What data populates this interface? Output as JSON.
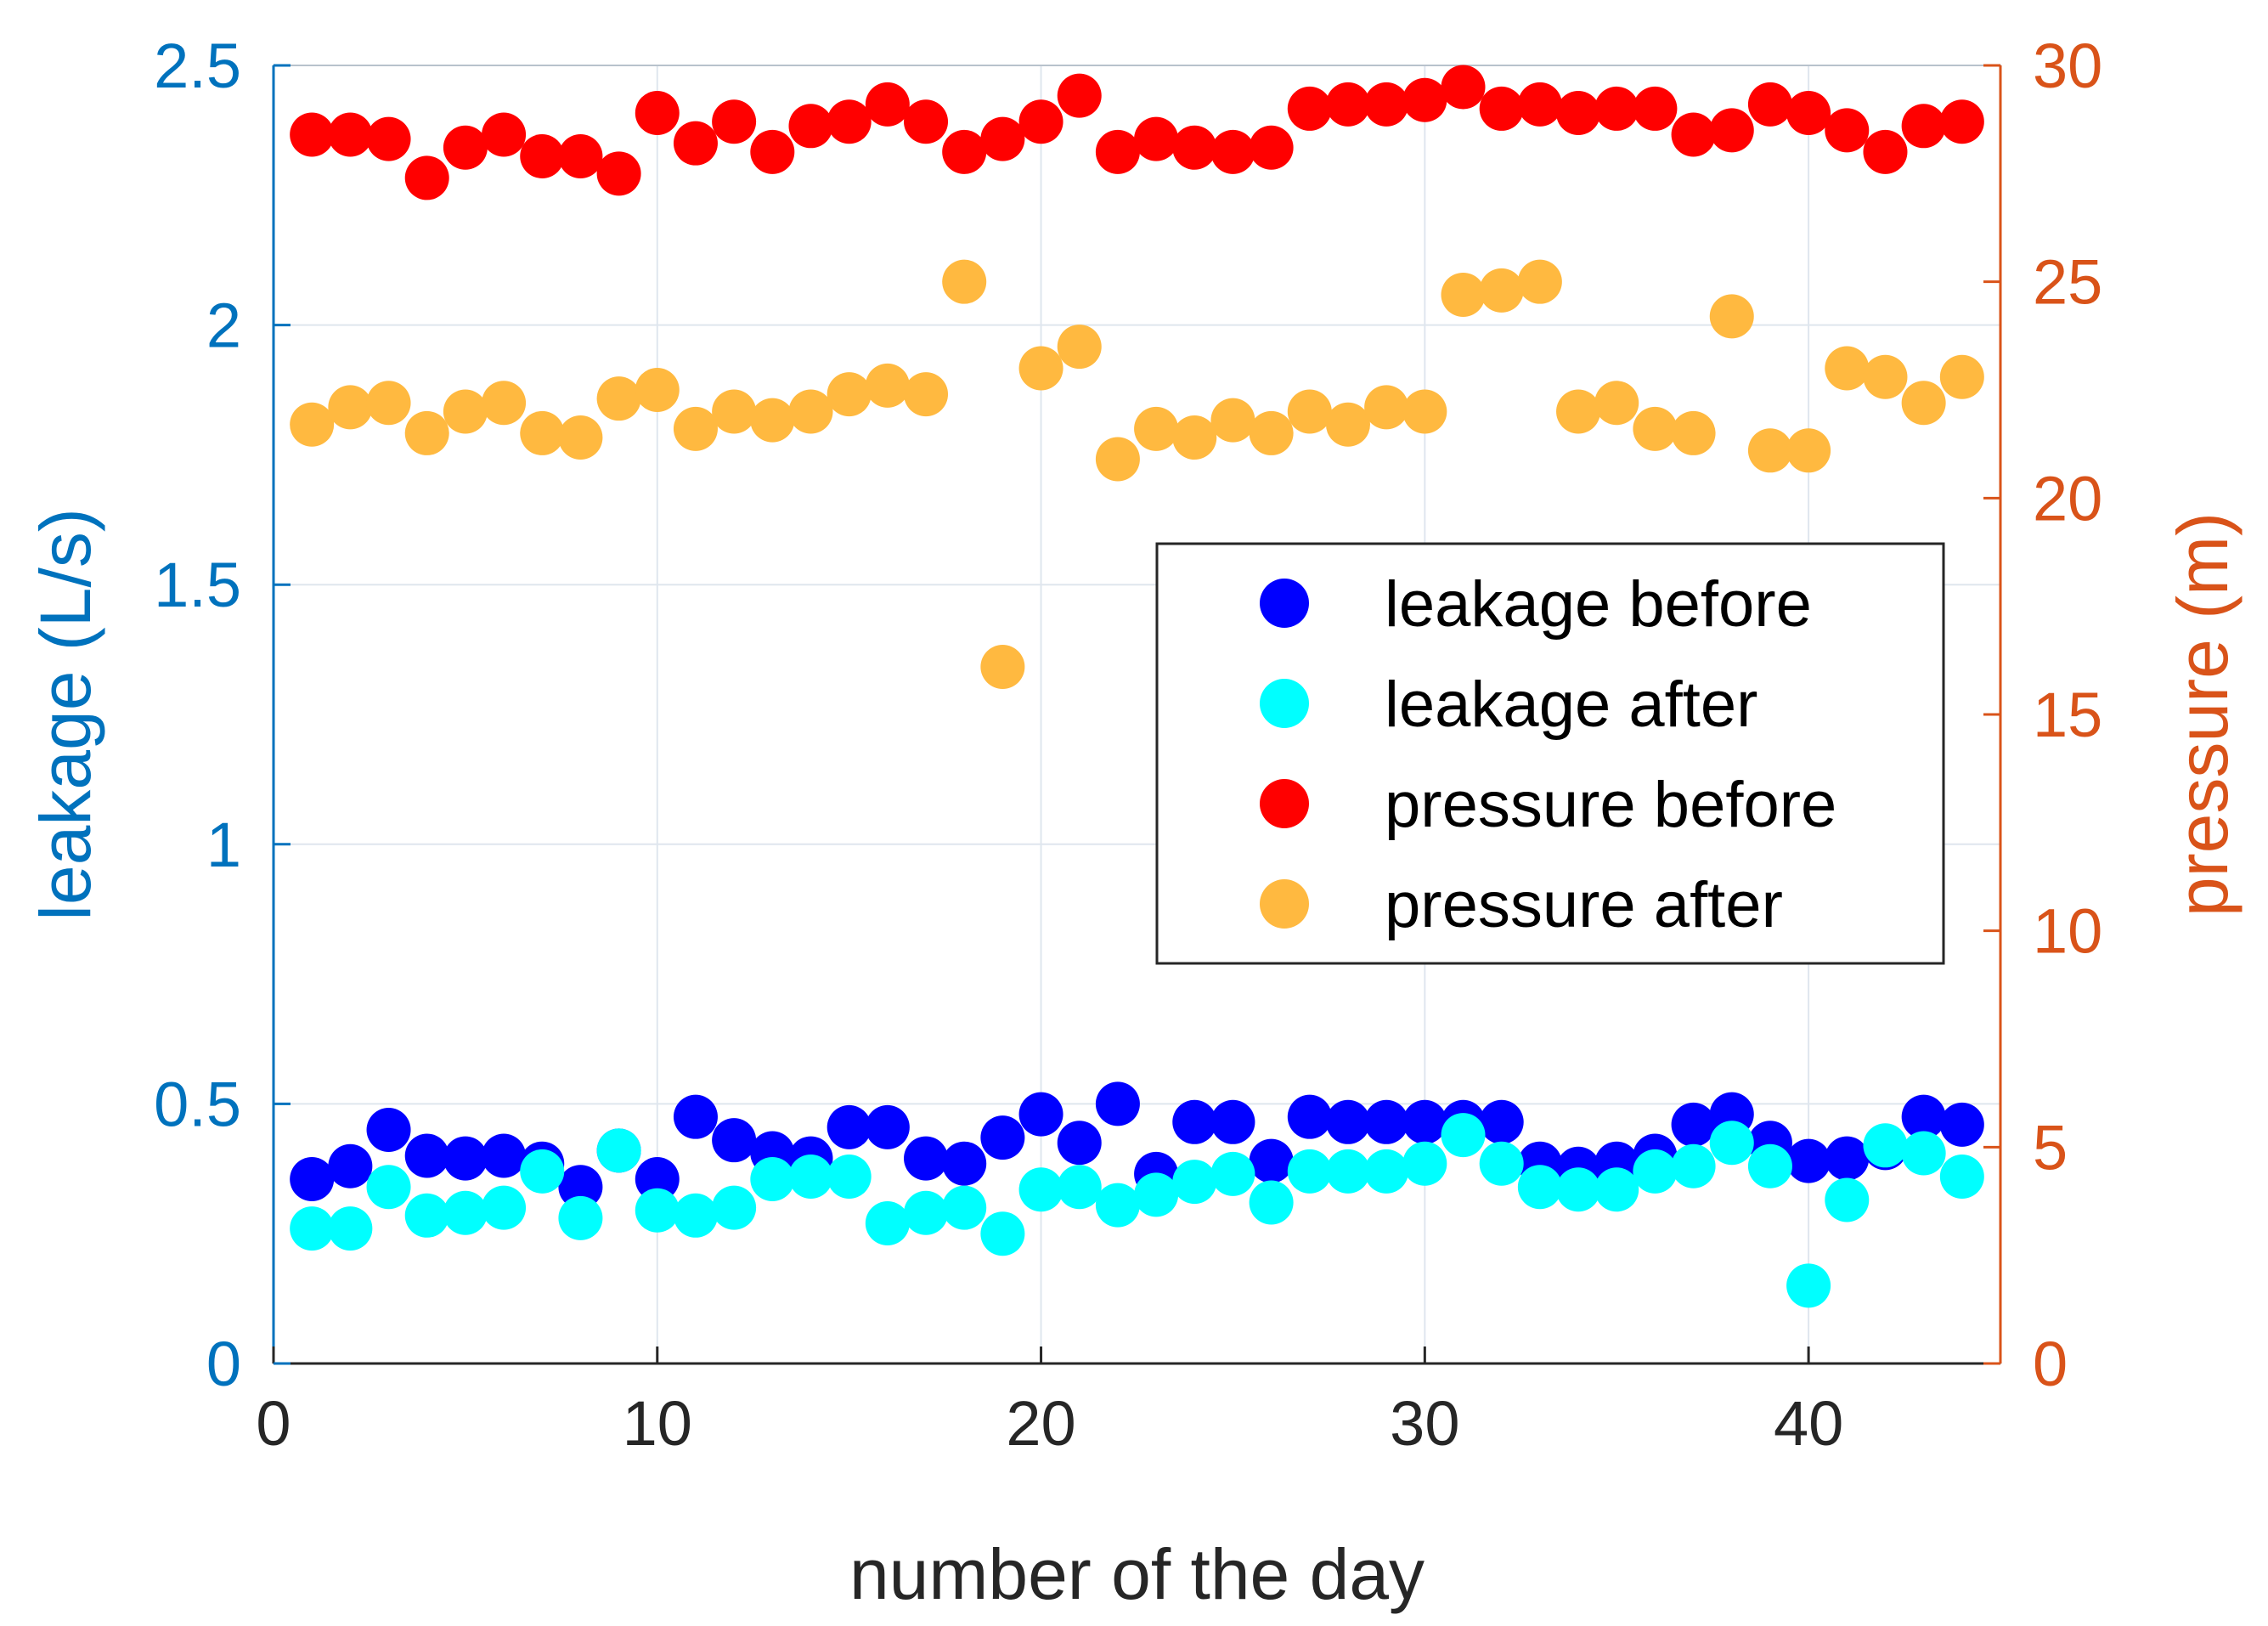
{
  "chart_data": {
    "type": "scatter",
    "xlabel": "number of the day",
    "ylabel_left": "leakage (L/s)",
    "ylabel_right": "pressure (m)",
    "xlim": [
      0,
      45
    ],
    "ylim_left": [
      0,
      2.5
    ],
    "ylim_right": [
      0,
      30
    ],
    "xticks": [
      0,
      10,
      20,
      30,
      40
    ],
    "yticks_left": [
      0,
      0.5,
      1,
      1.5,
      2,
      2.5
    ],
    "yticks_right": [
      0,
      5,
      10,
      15,
      20,
      25,
      30
    ],
    "xtick_labels": [
      "0",
      "10",
      "20",
      "30",
      "40"
    ],
    "yticks_left_labels": [
      "0",
      "0.5",
      "1",
      "1.5",
      "2",
      "2.5"
    ],
    "yticks_right_labels": [
      "0",
      "5",
      "10",
      "15",
      "20",
      "25",
      "30"
    ],
    "grid": true,
    "legend_position": "center-right",
    "colors": {
      "left_axis": "#0072BD",
      "right_axis": "#D95319",
      "x_axis": "#262626"
    },
    "x": [
      1,
      2,
      3,
      4,
      5,
      6,
      7,
      8,
      9,
      10,
      11,
      12,
      13,
      14,
      15,
      16,
      17,
      18,
      19,
      20,
      21,
      22,
      23,
      24,
      25,
      26,
      27,
      28,
      29,
      30,
      31,
      32,
      33,
      34,
      35,
      36,
      37,
      38,
      39,
      40,
      41,
      42,
      43,
      44
    ],
    "series": [
      {
        "name": "leakage before",
        "axis": "left",
        "color": "#0000FF",
        "values": [
          0.355,
          0.38,
          0.45,
          0.4,
          0.395,
          0.4,
          0.385,
          0.34,
          0.41,
          0.355,
          0.475,
          0.43,
          0.405,
          0.395,
          0.455,
          0.455,
          0.395,
          0.385,
          0.435,
          0.48,
          0.425,
          0.5,
          0.365,
          0.465,
          0.465,
          0.39,
          0.475,
          0.465,
          0.465,
          0.465,
          0.465,
          0.465,
          0.385,
          0.375,
          0.385,
          0.4,
          0.46,
          0.48,
          0.425,
          0.39,
          0.395,
          0.415,
          0.475,
          0.46
        ]
      },
      {
        "name": "leakage after",
        "axis": "left",
        "color": "#00FFFF",
        "values": [
          0.26,
          0.26,
          0.34,
          0.285,
          0.29,
          0.3,
          0.37,
          0.28,
          0.41,
          0.295,
          0.285,
          0.3,
          0.355,
          0.36,
          0.36,
          0.27,
          0.29,
          0.3,
          0.25,
          0.335,
          0.34,
          0.305,
          0.325,
          0.35,
          0.365,
          0.31,
          0.37,
          0.37,
          0.37,
          0.385,
          0.44,
          0.385,
          0.34,
          0.335,
          0.335,
          0.37,
          0.38,
          0.425,
          0.38,
          0.15,
          0.315,
          0.42,
          0.405,
          0.36
        ]
      },
      {
        "name": "pressure before",
        "axis": "right",
        "color": "#FF0000",
        "values": [
          28.4,
          28.4,
          28.3,
          27.4,
          28.1,
          28.4,
          27.9,
          27.9,
          27.5,
          28.9,
          28.2,
          28.7,
          28.0,
          28.6,
          28.7,
          29.1,
          28.7,
          28.0,
          28.3,
          28.7,
          29.3,
          28.0,
          28.3,
          28.1,
          28.0,
          28.1,
          29.0,
          29.1,
          29.1,
          29.2,
          29.5,
          29.0,
          29.1,
          28.9,
          29.0,
          29.0,
          28.4,
          28.5,
          29.1,
          28.9,
          28.5,
          28.0,
          28.6,
          28.7
        ]
      },
      {
        "name": "pressure after",
        "axis": "right",
        "color": "#FFB940",
        "values": [
          21.7,
          22.1,
          22.2,
          21.5,
          22.0,
          22.2,
          21.5,
          21.4,
          22.3,
          22.5,
          21.6,
          22.0,
          21.8,
          22.0,
          22.4,
          22.6,
          22.4,
          25.0,
          16.1,
          23.0,
          23.5,
          20.9,
          21.6,
          21.4,
          21.8,
          21.5,
          22.0,
          21.7,
          22.1,
          22.0,
          24.7,
          24.8,
          25.0,
          22.0,
          22.2,
          21.6,
          21.5,
          24.2,
          21.1,
          21.1,
          23.0,
          22.8,
          22.2,
          22.8
        ]
      }
    ]
  }
}
